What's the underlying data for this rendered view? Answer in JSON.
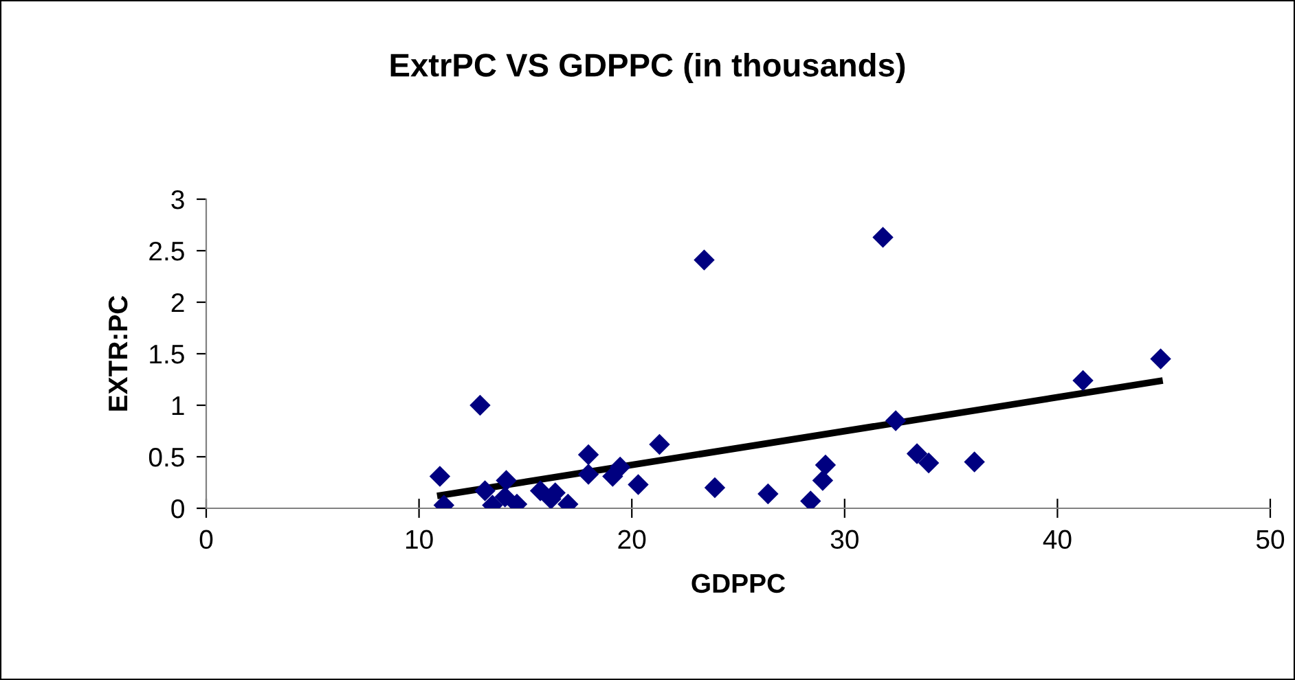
{
  "chart_data": {
    "type": "scatter",
    "title": "ExtrPC VS GDPPC (in thousands)",
    "xlabel": "GDPPC",
    "ylabel": "EXTR:PC",
    "xlim": [
      0,
      50
    ],
    "xticks": [
      0,
      10,
      20,
      30,
      40,
      50
    ],
    "ylim": [
      0,
      3
    ],
    "yticks": [
      0,
      0.5,
      1,
      1.5,
      2,
      2.5,
      3
    ],
    "grid": false,
    "legend": false,
    "series": [
      {
        "color": "#000080",
        "marker": "diamond",
        "x": [
          10.98,
          11.17,
          12.87,
          13.1,
          13.45,
          14.1,
          14.04,
          14.6,
          15.7,
          16.2,
          16.4,
          17.0,
          17.96,
          17.96,
          19.1,
          19.45,
          20.3,
          21.3,
          23.4,
          23.9,
          26.4,
          28.4,
          28.97,
          29.1,
          31.8,
          32.4,
          33.4,
          33.95,
          36.1,
          41.2,
          44.85
        ],
        "values": [
          0.31,
          0.03,
          1.0,
          0.17,
          0.03,
          0.27,
          0.11,
          0.04,
          0.17,
          0.09,
          0.15,
          0.04,
          0.52,
          0.33,
          0.31,
          0.4,
          0.23,
          0.62,
          2.41,
          0.2,
          0.14,
          0.07,
          0.27,
          0.42,
          2.63,
          0.85,
          0.53,
          0.44,
          0.45,
          1.24,
          1.45
        ]
      },
      {
        "type": "line",
        "color": "#000000",
        "marker": "none",
        "x": [
          10.85,
          44.95
        ],
        "values": [
          0.12,
          1.24
        ]
      }
    ]
  }
}
